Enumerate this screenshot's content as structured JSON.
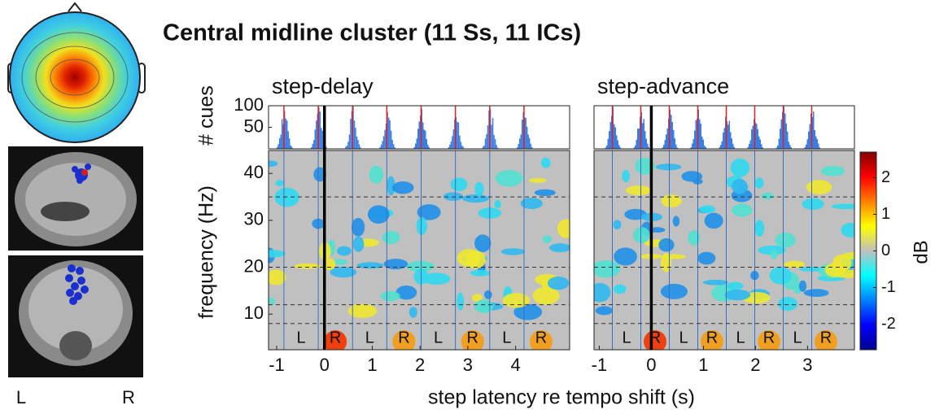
{
  "title": "Central midline cluster (11 Ss, 11 ICs)",
  "brain_labels": [
    "L",
    "R"
  ],
  "hist_label": "# cues",
  "y_label": "frequency (Hz)",
  "x_label": "step latency re tempo shift (s)",
  "colorbar": {
    "label": "dB",
    "lim": [
      -2.7,
      2.7
    ],
    "ticks": [
      -2,
      -1,
      0,
      1,
      2
    ]
  },
  "panels": [
    {
      "title": "step-delay",
      "xlim": [
        -1.17,
        5.13
      ],
      "xticks": [
        -1,
        0,
        1,
        2,
        3,
        4
      ],
      "ylim": [
        2.4,
        44.9
      ],
      "yticks": [
        10,
        20,
        30,
        40
      ],
      "hist_ylim": [
        0,
        100
      ],
      "hist_yticks": [
        50,
        100
      ],
      "band_edges": [
        8,
        12,
        20,
        35
      ],
      "step_labels": [
        "L",
        "R",
        "L",
        "R",
        "L",
        "R",
        "L",
        "R"
      ]
    },
    {
      "title": "step-advance",
      "xlim": [
        -1.1,
        3.9
      ],
      "xticks": [
        -1,
        0,
        1,
        2,
        3
      ],
      "ylim": [
        2.4,
        44.9
      ],
      "yticks": [
        10,
        20,
        30,
        40
      ],
      "hist_ylim": [
        0,
        100
      ],
      "hist_yticks": [
        50,
        100
      ],
      "band_edges": [
        8,
        12,
        20,
        35
      ],
      "step_labels": [
        "L",
        "R",
        "L",
        "R",
        "L",
        "R",
        "L",
        "R"
      ]
    }
  ]
}
